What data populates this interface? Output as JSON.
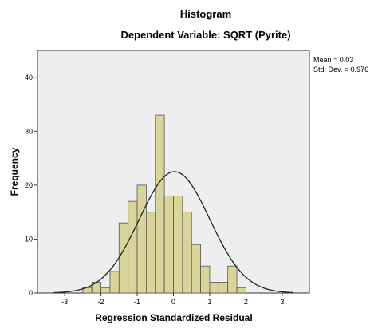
{
  "chart_data": {
    "type": "bar",
    "title": "Histogram",
    "subtitle": "Dependent Variable: SQRT (Pyrite)",
    "xlabel": "Regression Standardized Residual",
    "ylabel": "Frequency",
    "xlim": [
      -3.75,
      3.75
    ],
    "ylim": [
      0,
      45
    ],
    "x_ticks": [
      -3,
      -2,
      -1,
      0,
      1,
      2,
      3
    ],
    "y_ticks": [
      0,
      10,
      20,
      30,
      40
    ],
    "bin_width": 0.25,
    "bins": [
      {
        "x0": -2.5,
        "count": 1
      },
      {
        "x0": -2.25,
        "count": 2
      },
      {
        "x0": -2.0,
        "count": 1
      },
      {
        "x0": -1.75,
        "count": 4
      },
      {
        "x0": -1.5,
        "count": 13
      },
      {
        "x0": -1.25,
        "count": 17
      },
      {
        "x0": -1.0,
        "count": 20
      },
      {
        "x0": -0.75,
        "count": 15
      },
      {
        "x0": -0.5,
        "count": 33
      },
      {
        "x0": -0.25,
        "count": 18
      },
      {
        "x0": 0.0,
        "count": 18
      },
      {
        "x0": 0.25,
        "count": 15
      },
      {
        "x0": 0.5,
        "count": 9
      },
      {
        "x0": 0.75,
        "count": 5
      },
      {
        "x0": 1.0,
        "count": 2
      },
      {
        "x0": 1.25,
        "count": 2
      },
      {
        "x0": 1.5,
        "count": 5
      },
      {
        "x0": 1.75,
        "count": 1
      }
    ],
    "normal_curve": {
      "mean": 0.03,
      "sd": 0.976,
      "peak_frequency": 22.5
    },
    "stats": {
      "mean_label": "Mean = 0.03",
      "sd_label": "Std. Dev. = 0.976"
    },
    "bar_fill": "#d9d59a",
    "bar_stroke": "#555555",
    "plot_background": "#eeeeee",
    "curve_color": "#222222",
    "grid": false
  }
}
